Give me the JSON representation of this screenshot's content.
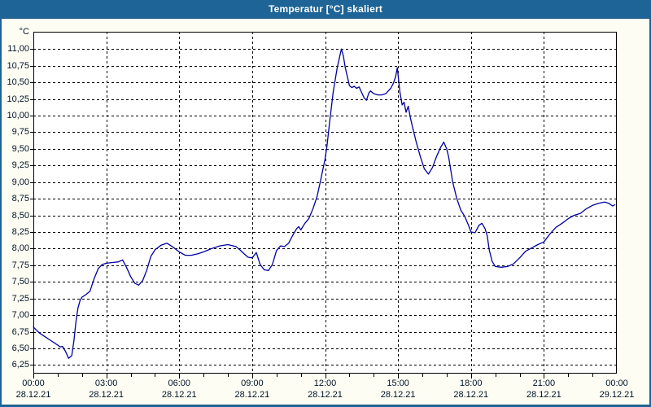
{
  "window": {
    "title": "Temperatur [°C] skaliert"
  },
  "colors": {
    "titlebar": "#1e6496",
    "frame_border": "#1e6496",
    "background": "#fdfdf4",
    "plot_bg": "#ffffff",
    "grid": "#000000",
    "axis": "#000000",
    "line": "#0000a0",
    "text": "#001326",
    "title_text": "#ffffff"
  },
  "chart_data": {
    "type": "line",
    "title": "Temperatur [°C] skaliert",
    "y_unit_label": "°C",
    "xlabel": "",
    "ylabel": "",
    "legend": "none",
    "grid": "dashed",
    "ylim": [
      6.12,
      11.26
    ],
    "xlim_hours": [
      0,
      24
    ],
    "minor_x_tick_hours": 1,
    "y_ticks": [
      {
        "value": 11.0,
        "label": "11,00"
      },
      {
        "value": 10.75,
        "label": "10,75"
      },
      {
        "value": 10.5,
        "label": "10,50"
      },
      {
        "value": 10.25,
        "label": "10,25"
      },
      {
        "value": 10.0,
        "label": "10,00"
      },
      {
        "value": 9.75,
        "label": "9,75"
      },
      {
        "value": 9.5,
        "label": "9,50"
      },
      {
        "value": 9.25,
        "label": "9,25"
      },
      {
        "value": 9.0,
        "label": "9,00"
      },
      {
        "value": 8.75,
        "label": "8,75"
      },
      {
        "value": 8.5,
        "label": "8,50"
      },
      {
        "value": 8.25,
        "label": "8,25"
      },
      {
        "value": 8.0,
        "label": "8,00"
      },
      {
        "value": 7.75,
        "label": "7,75"
      },
      {
        "value": 7.5,
        "label": "7,50"
      },
      {
        "value": 7.25,
        "label": "7,25"
      },
      {
        "value": 7.0,
        "label": "7,00"
      },
      {
        "value": 6.75,
        "label": "6,75"
      },
      {
        "value": 6.5,
        "label": "6,50"
      },
      {
        "value": 6.25,
        "label": "6,25"
      }
    ],
    "x_ticks": [
      {
        "hour": 0,
        "time": "00:00",
        "date": "28.12.21"
      },
      {
        "hour": 3,
        "time": "03:00",
        "date": "28.12.21"
      },
      {
        "hour": 6,
        "time": "06:00",
        "date": "28.12.21"
      },
      {
        "hour": 9,
        "time": "09:00",
        "date": "28.12.21"
      },
      {
        "hour": 12,
        "time": "12:00",
        "date": "28.12.21"
      },
      {
        "hour": 15,
        "time": "15:00",
        "date": "28.12.21"
      },
      {
        "hour": 18,
        "time": "18:00",
        "date": "28.12.21"
      },
      {
        "hour": 21,
        "time": "21:00",
        "date": "28.12.21"
      },
      {
        "hour": 24,
        "time": "00:00",
        "date": "29.12.21"
      }
    ],
    "series": [
      {
        "name": "Temperatur [°C]",
        "color": "#0000a0",
        "points": [
          [
            0.0,
            6.82
          ],
          [
            0.25,
            6.73
          ],
          [
            0.5,
            6.67
          ],
          [
            0.75,
            6.61
          ],
          [
            1.0,
            6.55
          ],
          [
            1.1,
            6.52
          ],
          [
            1.2,
            6.53
          ],
          [
            1.33,
            6.45
          ],
          [
            1.45,
            6.35
          ],
          [
            1.58,
            6.39
          ],
          [
            1.67,
            6.62
          ],
          [
            1.75,
            6.9
          ],
          [
            1.83,
            7.1
          ],
          [
            1.92,
            7.22
          ],
          [
            2.0,
            7.27
          ],
          [
            2.17,
            7.31
          ],
          [
            2.33,
            7.36
          ],
          [
            2.5,
            7.55
          ],
          [
            2.67,
            7.7
          ],
          [
            2.83,
            7.76
          ],
          [
            3.0,
            7.78
          ],
          [
            3.25,
            7.79
          ],
          [
            3.5,
            7.8
          ],
          [
            3.67,
            7.83
          ],
          [
            3.83,
            7.72
          ],
          [
            4.0,
            7.58
          ],
          [
            4.17,
            7.48
          ],
          [
            4.33,
            7.45
          ],
          [
            4.5,
            7.52
          ],
          [
            4.67,
            7.68
          ],
          [
            4.83,
            7.88
          ],
          [
            5.0,
            7.98
          ],
          [
            5.25,
            8.05
          ],
          [
            5.5,
            8.08
          ],
          [
            5.75,
            8.02
          ],
          [
            6.0,
            7.95
          ],
          [
            6.25,
            7.9
          ],
          [
            6.5,
            7.9
          ],
          [
            6.75,
            7.92
          ],
          [
            7.0,
            7.95
          ],
          [
            7.33,
            8.0
          ],
          [
            7.67,
            8.04
          ],
          [
            8.0,
            8.06
          ],
          [
            8.33,
            8.03
          ],
          [
            8.5,
            7.98
          ],
          [
            8.67,
            7.92
          ],
          [
            8.83,
            7.87
          ],
          [
            9.0,
            7.86
          ],
          [
            9.17,
            7.94
          ],
          [
            9.33,
            7.76
          ],
          [
            9.5,
            7.68
          ],
          [
            9.67,
            7.67
          ],
          [
            9.83,
            7.76
          ],
          [
            10.0,
            7.97
          ],
          [
            10.17,
            8.04
          ],
          [
            10.33,
            8.03
          ],
          [
            10.5,
            8.08
          ],
          [
            10.67,
            8.2
          ],
          [
            10.83,
            8.3
          ],
          [
            10.92,
            8.33
          ],
          [
            11.0,
            8.28
          ],
          [
            11.17,
            8.38
          ],
          [
            11.33,
            8.45
          ],
          [
            11.5,
            8.6
          ],
          [
            11.67,
            8.78
          ],
          [
            11.83,
            9.05
          ],
          [
            12.0,
            9.35
          ],
          [
            12.08,
            9.55
          ],
          [
            12.17,
            9.85
          ],
          [
            12.33,
            10.35
          ],
          [
            12.5,
            10.72
          ],
          [
            12.67,
            11.0
          ],
          [
            12.75,
            10.9
          ],
          [
            12.83,
            10.72
          ],
          [
            13.0,
            10.45
          ],
          [
            13.1,
            10.42
          ],
          [
            13.2,
            10.44
          ],
          [
            13.3,
            10.41
          ],
          [
            13.4,
            10.43
          ],
          [
            13.5,
            10.35
          ],
          [
            13.6,
            10.27
          ],
          [
            13.7,
            10.23
          ],
          [
            13.8,
            10.34
          ],
          [
            13.87,
            10.37
          ],
          [
            14.0,
            10.33
          ],
          [
            14.17,
            10.31
          ],
          [
            14.33,
            10.31
          ],
          [
            14.5,
            10.33
          ],
          [
            14.6,
            10.37
          ],
          [
            14.7,
            10.41
          ],
          [
            14.8,
            10.48
          ],
          [
            14.9,
            10.58
          ],
          [
            14.97,
            10.72
          ],
          [
            15.08,
            10.35
          ],
          [
            15.17,
            10.16
          ],
          [
            15.25,
            10.2
          ],
          [
            15.33,
            10.05
          ],
          [
            15.42,
            10.14
          ],
          [
            15.5,
            9.98
          ],
          [
            15.58,
            9.85
          ],
          [
            15.75,
            9.6
          ],
          [
            15.92,
            9.38
          ],
          [
            16.08,
            9.2
          ],
          [
            16.25,
            9.12
          ],
          [
            16.42,
            9.22
          ],
          [
            16.58,
            9.38
          ],
          [
            16.75,
            9.52
          ],
          [
            16.88,
            9.6
          ],
          [
            17.0,
            9.5
          ],
          [
            17.08,
            9.38
          ],
          [
            17.25,
            9.0
          ],
          [
            17.42,
            8.75
          ],
          [
            17.58,
            8.58
          ],
          [
            17.75,
            8.48
          ],
          [
            17.92,
            8.33
          ],
          [
            18.0,
            8.25
          ],
          [
            18.17,
            8.24
          ],
          [
            18.33,
            8.35
          ],
          [
            18.45,
            8.38
          ],
          [
            18.58,
            8.3
          ],
          [
            18.67,
            8.19
          ],
          [
            18.75,
            7.98
          ],
          [
            18.87,
            7.81
          ],
          [
            19.0,
            7.73
          ],
          [
            19.25,
            7.72
          ],
          [
            19.5,
            7.73
          ],
          [
            19.75,
            7.77
          ],
          [
            20.0,
            7.86
          ],
          [
            20.25,
            7.96
          ],
          [
            20.5,
            8.01
          ],
          [
            20.75,
            8.06
          ],
          [
            21.0,
            8.1
          ],
          [
            21.25,
            8.22
          ],
          [
            21.5,
            8.32
          ],
          [
            21.75,
            8.38
          ],
          [
            22.0,
            8.45
          ],
          [
            22.25,
            8.5
          ],
          [
            22.5,
            8.53
          ],
          [
            22.75,
            8.6
          ],
          [
            23.0,
            8.65
          ],
          [
            23.25,
            8.68
          ],
          [
            23.5,
            8.7
          ],
          [
            23.67,
            8.68
          ],
          [
            23.83,
            8.64
          ],
          [
            23.92,
            8.66
          ]
        ]
      }
    ]
  }
}
